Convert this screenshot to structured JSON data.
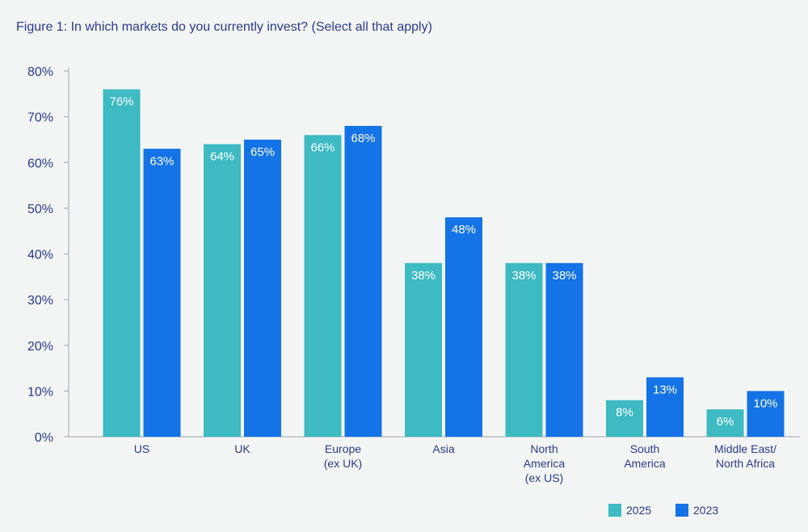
{
  "chart_data": {
    "type": "bar",
    "title": "Figure 1: In which markets do you currently invest? (Select all that apply)",
    "categories": [
      [
        "US"
      ],
      [
        "UK"
      ],
      [
        "Europe",
        "(ex UK)"
      ],
      [
        "Asia"
      ],
      [
        "North",
        "America",
        "(ex US)"
      ],
      [
        "South",
        "America"
      ],
      [
        "Middle East/",
        "North Africa"
      ]
    ],
    "series": [
      {
        "name": "2025",
        "color": "#3dbac2",
        "values": [
          76,
          64,
          66,
          38,
          38,
          8,
          6
        ]
      },
      {
        "name": "2023",
        "color": "#1473e6",
        "values": [
          63,
          65,
          68,
          48,
          38,
          13,
          10
        ]
      }
    ],
    "ylim": [
      0,
      80
    ],
    "yticks": [
      0,
      10,
      20,
      30,
      40,
      50,
      60,
      70,
      80
    ],
    "value_suffix": "%",
    "xlabel": "",
    "ylabel": "",
    "grid": false,
    "legend_position": "bottom-right",
    "colors": {
      "text": "#2a3a8c",
      "axis": "#9aa6b2",
      "label_on_bar": "#ffffff"
    }
  }
}
